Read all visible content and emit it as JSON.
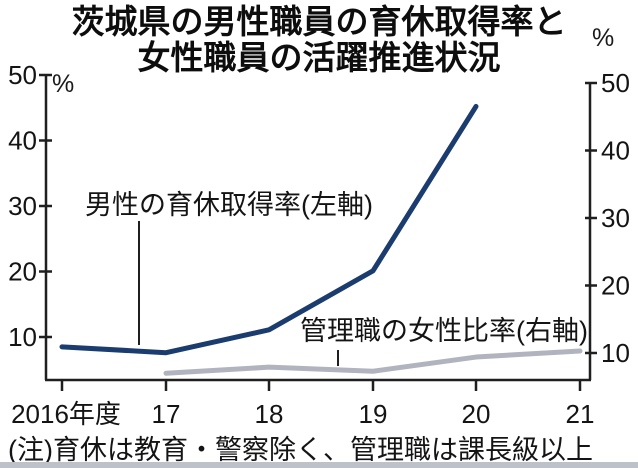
{
  "title": {
    "line1": "茨城県の男性職員の育休取得率と",
    "line2": "女性職員の活躍推進状況"
  },
  "footnote": "(注)育休は教育・警察除く、管理職は課長級以上",
  "chart_data": {
    "type": "line",
    "title": "茨城県の男性職員の育休取得率と女性職員の活躍推進状況",
    "x_categories": [
      "2016年度",
      "17",
      "18",
      "19",
      "20",
      "21"
    ],
    "left_axis": {
      "unit": "%",
      "ticks": [
        10,
        20,
        30,
        40,
        50
      ],
      "ylim_approx": [
        3.5,
        50
      ],
      "side": "left"
    },
    "right_axis": {
      "unit": "%",
      "ticks": [
        10,
        20,
        30,
        40,
        50
      ],
      "ylim_approx": [
        6,
        50
      ],
      "side": "right"
    },
    "grid": false,
    "legend": "inline-annotations",
    "series": [
      {
        "name": "男性の育休取得率",
        "label": "男性の育休取得率(左軸)",
        "axis": "left",
        "color": "#1b3c6e",
        "x_indexes": [
          0,
          1,
          2,
          3,
          4
        ],
        "x_labels": [
          "2016",
          "17",
          "18",
          "19",
          "20"
        ],
        "values": [
          8.5,
          7.6,
          11.1,
          20.1,
          45.2
        ]
      },
      {
        "name": "管理職の女性比率",
        "label": "管理職の女性比率(右軸)",
        "axis": "right",
        "color": "#b1b4bf",
        "x_indexes": [
          1,
          2,
          3,
          4,
          5
        ],
        "x_labels": [
          "17",
          "18",
          "19",
          "20",
          "21"
        ],
        "values": [
          7.0,
          7.9,
          7.3,
          9.4,
          10.3
        ]
      }
    ]
  }
}
